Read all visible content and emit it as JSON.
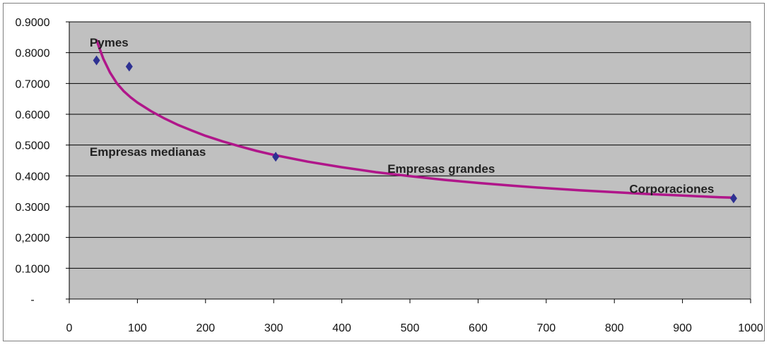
{
  "chart_data": {
    "type": "scatter",
    "title": "",
    "xlabel": "",
    "ylabel": "",
    "xlim": [
      0,
      1000
    ],
    "ylim": [
      0,
      0.9
    ],
    "x_ticks": [
      0,
      100,
      200,
      300,
      400,
      500,
      600,
      700,
      800,
      900,
      1000
    ],
    "x_tick_labels": [
      "0",
      "100",
      "200",
      "300",
      "400",
      "500",
      "600",
      "700",
      "800",
      "900",
      "1000"
    ],
    "y_ticks": [
      0,
      0.1,
      0.2,
      0.3,
      0.4,
      0.5,
      0.6,
      0.7,
      0.8,
      0.9
    ],
    "y_tick_labels": [
      "-",
      "0.1000",
      "0,2000",
      "0.3000",
      "0.4000",
      "0.5000",
      "0.6000",
      "0.7000",
      "0.8000",
      "0.9000"
    ],
    "grid": "horizontal",
    "plot_background": "#c0c0c0",
    "series": [
      {
        "kind": "markers",
        "marker": "diamond",
        "color": "#2e3192",
        "points": [
          {
            "x": 40,
            "y": 0.775
          },
          {
            "x": 88,
            "y": 0.755
          },
          {
            "x": 303,
            "y": 0.462
          },
          {
            "x": 975,
            "y": 0.327
          }
        ]
      },
      {
        "kind": "trendline",
        "color": "#b0168a",
        "x": [
          40,
          50,
          60,
          70,
          80,
          90,
          100,
          120,
          140,
          160,
          180,
          200,
          225,
          250,
          275,
          300,
          350,
          400,
          450,
          500,
          550,
          600,
          650,
          700,
          750,
          800,
          850,
          900,
          950,
          975
        ],
        "y": [
          0.84,
          0.78,
          0.735,
          0.7,
          0.675,
          0.655,
          0.638,
          0.61,
          0.586,
          0.565,
          0.547,
          0.53,
          0.512,
          0.496,
          0.481,
          0.468,
          0.446,
          0.428,
          0.412,
          0.399,
          0.387,
          0.377,
          0.368,
          0.36,
          0.353,
          0.347,
          0.341,
          0.336,
          0.331,
          0.329
        ]
      }
    ],
    "annotations": [
      {
        "text": "Pymes",
        "x": 30,
        "y": 0.82
      },
      {
        "text": "Empresas medianas",
        "x": 30,
        "y": 0.465
      },
      {
        "text": "Empresas grandes",
        "x": 467,
        "y": 0.41
      },
      {
        "text": "Corporaciones",
        "x": 822,
        "y": 0.345
      }
    ]
  }
}
